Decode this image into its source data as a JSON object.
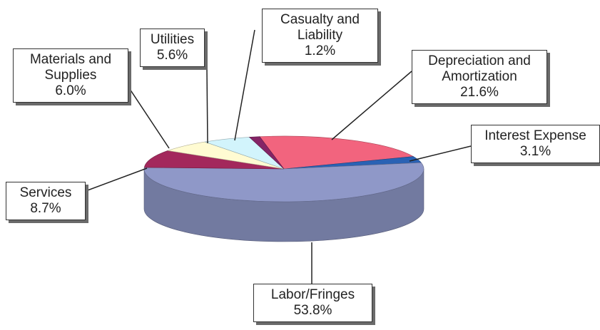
{
  "chart_data": {
    "type": "pie3d",
    "categories": [
      "Depreciation and Amortization",
      "Interest Expense",
      "Labor/Fringes",
      "Services",
      "Materials and Supplies",
      "Utilities",
      "Casualty and Liability"
    ],
    "values": [
      21.6,
      3.1,
      53.8,
      8.7,
      6.0,
      5.6,
      1.2
    ],
    "value_labels": [
      "21.6%",
      "3.1%",
      "53.8%",
      "8.7%",
      "6.0%",
      "5.6%",
      "1.2%"
    ],
    "colors": [
      "#f2647e",
      "#2a62b4",
      "#8f98c8",
      "#a3285c",
      "#fffbd2",
      "#d2f4fc",
      "#842466"
    ]
  }
}
